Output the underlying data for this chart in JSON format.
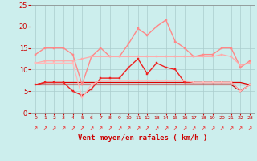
{
  "xlabel": "Vent moyen/en rafales ( km/h )",
  "x": [
    0,
    1,
    2,
    3,
    4,
    5,
    6,
    7,
    8,
    9,
    10,
    11,
    12,
    13,
    14,
    15,
    16,
    17,
    18,
    19,
    20,
    21,
    22,
    23
  ],
  "background_color": "#cceeed",
  "grid_color": "#aacccc",
  "ylim": [
    0,
    25
  ],
  "yticks": [
    0,
    5,
    10,
    15,
    20,
    25
  ],
  "lines": [
    {
      "color": "#dd0000",
      "linewidth": 0.9,
      "marker": null,
      "values": [
        6.5,
        7.0,
        7.0,
        7.0,
        7.0,
        7.0,
        7.0,
        7.0,
        7.0,
        7.0,
        7.0,
        7.0,
        7.0,
        7.0,
        7.0,
        7.0,
        7.0,
        7.0,
        7.0,
        7.0,
        7.0,
        7.0,
        7.0,
        6.5
      ]
    },
    {
      "color": "#cc0000",
      "linewidth": 0.8,
      "marker": null,
      "values": [
        6.5,
        6.5,
        6.5,
        6.5,
        6.5,
        6.5,
        6.5,
        6.5,
        6.5,
        6.5,
        6.5,
        6.5,
        6.5,
        6.5,
        6.5,
        6.5,
        6.5,
        6.5,
        6.5,
        6.5,
        6.5,
        6.5,
        6.5,
        6.5
      ]
    },
    {
      "color": "#bb0000",
      "linewidth": 0.8,
      "marker": null,
      "values": [
        6.5,
        6.5,
        6.5,
        6.5,
        6.5,
        6.5,
        6.5,
        6.5,
        6.5,
        6.5,
        6.5,
        6.5,
        6.5,
        6.5,
        6.5,
        6.5,
        6.5,
        6.5,
        6.5,
        6.5,
        6.5,
        6.5,
        5.0,
        6.5
      ]
    },
    {
      "color": "#ee2222",
      "linewidth": 1.0,
      "marker": "s",
      "markersize": 2.0,
      "values": [
        6.5,
        7.0,
        7.0,
        7.0,
        5.0,
        4.0,
        5.5,
        8.0,
        8.0,
        8.0,
        10.5,
        12.5,
        9.0,
        11.5,
        10.5,
        10.0,
        7.0,
        7.0,
        7.0,
        7.0,
        7.0,
        7.0,
        5.0,
        6.5
      ]
    },
    {
      "color": "#ff8888",
      "linewidth": 1.0,
      "marker": "s",
      "markersize": 2.0,
      "values": [
        13.5,
        15.0,
        15.0,
        15.0,
        13.5,
        6.5,
        13.0,
        15.0,
        13.0,
        13.0,
        16.0,
        19.5,
        18.0,
        20.0,
        21.5,
        16.5,
        15.0,
        13.0,
        13.5,
        13.5,
        15.0,
        15.0,
        10.5,
        12.0
      ]
    },
    {
      "color": "#ffaaaa",
      "linewidth": 0.9,
      "marker": "s",
      "markersize": 1.8,
      "values": [
        11.5,
        12.0,
        12.0,
        12.0,
        12.0,
        12.5,
        13.0,
        13.0,
        13.0,
        13.0,
        13.0,
        13.0,
        13.0,
        13.0,
        13.0,
        13.0,
        13.0,
        13.0,
        13.0,
        13.0,
        13.5,
        13.0,
        11.0,
        11.5
      ]
    },
    {
      "color": "#ffbbbb",
      "linewidth": 0.9,
      "marker": "s",
      "markersize": 1.8,
      "values": [
        11.5,
        11.5,
        11.5,
        11.5,
        11.5,
        3.5,
        6.5,
        7.5,
        7.5,
        7.5,
        7.5,
        7.5,
        7.5,
        7.5,
        7.5,
        7.5,
        7.5,
        7.0,
        7.0,
        7.0,
        7.0,
        7.0,
        5.0,
        6.5
      ]
    }
  ],
  "arrow_symbol": "↗",
  "text_color": "#cc0000",
  "tick_color": "#cc0000"
}
